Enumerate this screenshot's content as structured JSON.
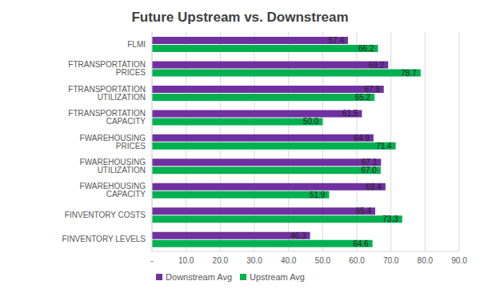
{
  "chart_data": {
    "type": "bar",
    "title": "Future Upstream vs. Downstream",
    "orientation": "horizontal",
    "categories": [
      "FLMI",
      "FTRANSPORTATION PRICES",
      "FTRANSPORTATION UTILIZATION",
      "FTRANSPORTATION CAPACITY",
      "FWAREHOUSING PRICES",
      "FWAREHOUSING UTILIZATION",
      "FWAREHOUSING CAPACITY",
      "FINVENTORY COSTS",
      "FINVENTORY LEVELS"
    ],
    "series": [
      {
        "name": "Downstream Avg",
        "color": "#7030a0",
        "values": [
          57.4,
          69.2,
          67.9,
          61.5,
          64.9,
          67.1,
          68.4,
          65.4,
          46.3
        ],
        "value_labels": [
          "57.4",
          "69.2",
          "67.9",
          "61.5",
          "64.9",
          "67.1",
          "68.4",
          "65.4",
          "46.3"
        ]
      },
      {
        "name": "Upstream Avg",
        "color": "#00b050",
        "values": [
          66.2,
          78.7,
          65.2,
          50.0,
          71.4,
          67.0,
          51.9,
          73.3,
          64.6
        ],
        "value_labels": [
          "66.2",
          "78.7",
          "65.2",
          "50.0",
          "71.4",
          "67.0",
          "51.9",
          "73.3",
          "64.6"
        ]
      }
    ],
    "xlim": [
      0,
      90
    ],
    "xticks": [
      {
        "value": 0,
        "label": "-"
      },
      {
        "value": 10,
        "label": "10.0"
      },
      {
        "value": 20,
        "label": "20.0"
      },
      {
        "value": 30,
        "label": "30.0"
      },
      {
        "value": 40,
        "label": "40.0"
      },
      {
        "value": 50,
        "label": "50.0"
      },
      {
        "value": 60,
        "label": "60.0"
      },
      {
        "value": 70,
        "label": "70.0"
      },
      {
        "value": 80,
        "label": "80.0"
      },
      {
        "value": 90,
        "label": "90.0"
      }
    ],
    "grid": true,
    "legend": "bottom",
    "data_labels": true
  }
}
